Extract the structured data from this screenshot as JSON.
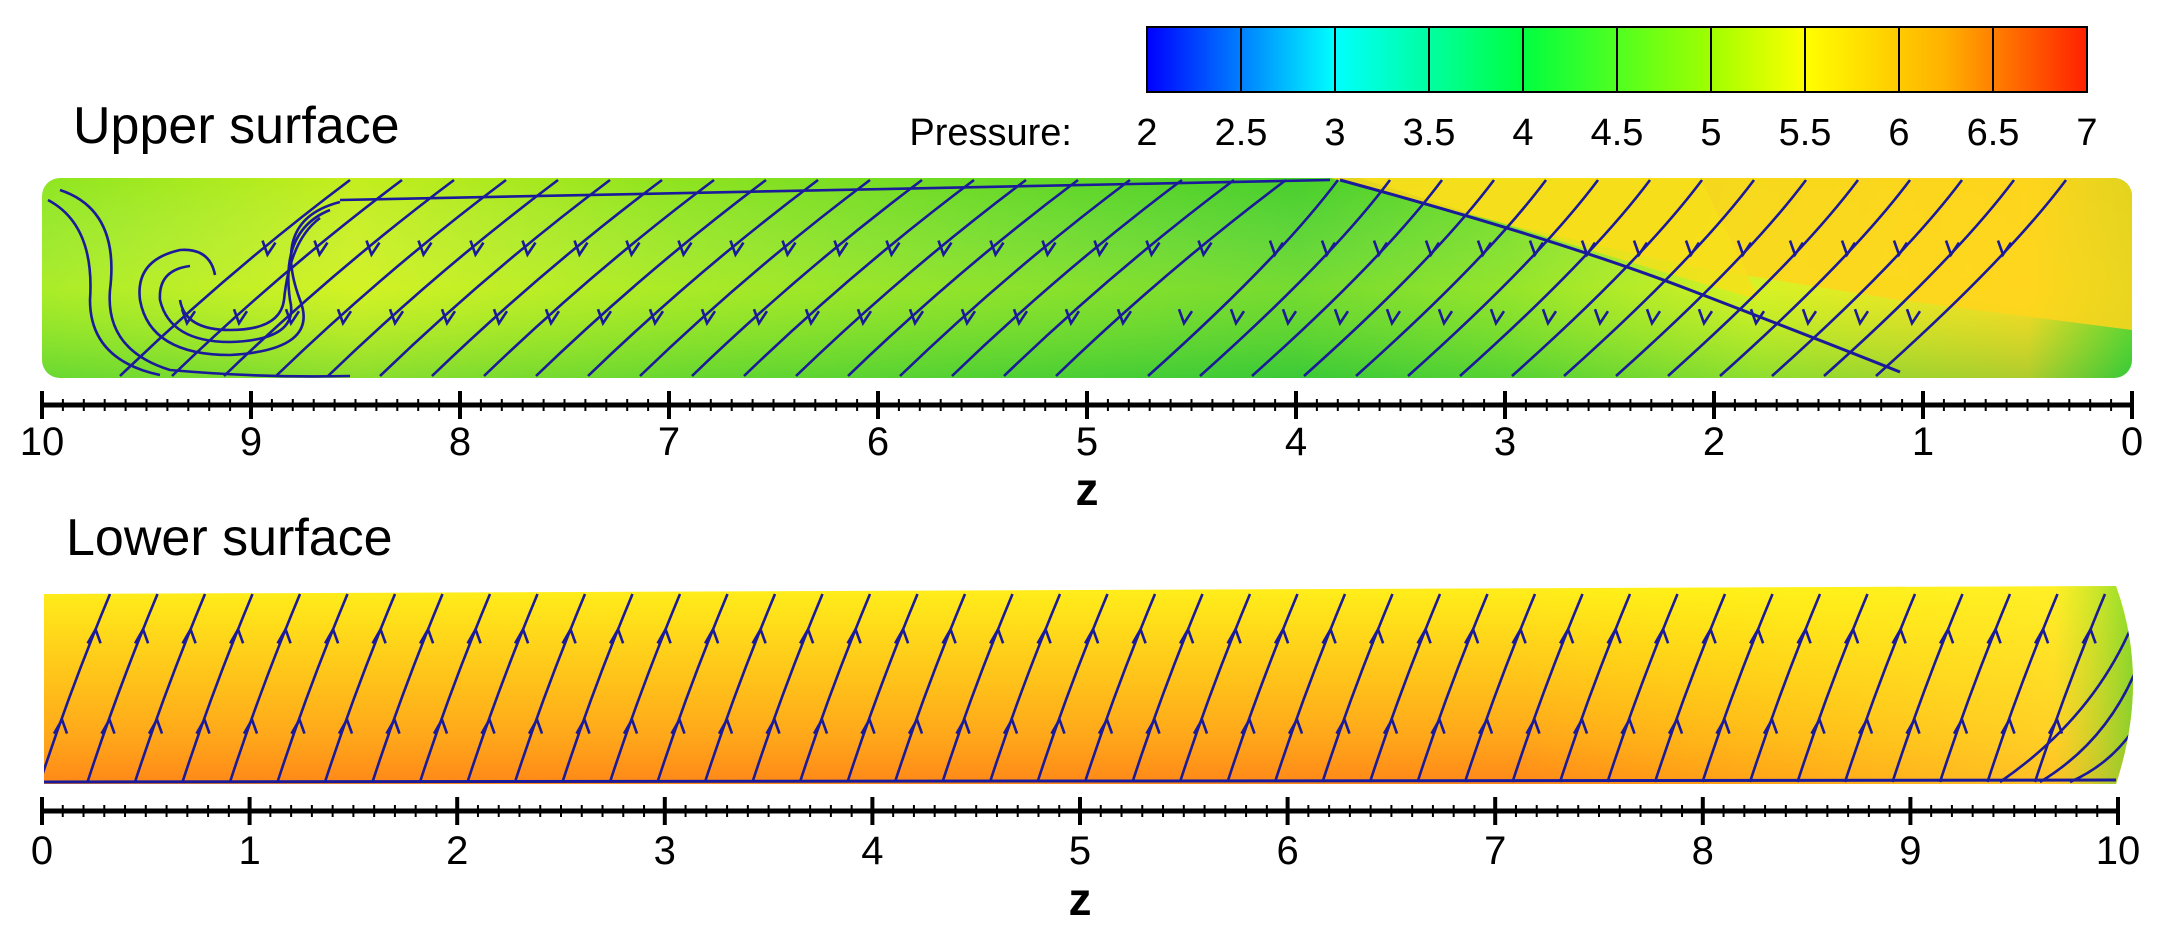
{
  "panels": {
    "upper": {
      "title": "Upper surface"
    },
    "lower": {
      "title": "Lower surface"
    }
  },
  "colorbar": {
    "label": "Pressure:",
    "ticks": [
      "2",
      "2.5",
      "3",
      "3.5",
      "4",
      "4.5",
      "5",
      "5.5",
      "6",
      "6.5",
      "7"
    ],
    "range": [
      2,
      7
    ],
    "colors": [
      "#0000ff",
      "#0080ff",
      "#00ffff",
      "#00ff80",
      "#00ff00",
      "#80ff00",
      "#ffff00",
      "#ffc000",
      "#ff8000",
      "#ff0000"
    ]
  },
  "upper_axis": {
    "label": "z",
    "ticks": [
      "10",
      "9",
      "8",
      "7",
      "6",
      "5",
      "4",
      "3",
      "2",
      "1",
      "0"
    ],
    "direction": "decreasing"
  },
  "lower_axis": {
    "label": "z",
    "ticks": [
      "0",
      "1",
      "2",
      "3",
      "4",
      "5",
      "6",
      "7",
      "8",
      "9",
      "10"
    ],
    "direction": "increasing"
  },
  "colors": {
    "streamline": "#1a1a9a",
    "upper_fill_low": "#33d12a",
    "upper_fill_mid": "#a8e61c",
    "upper_fill_high": "#ffd21c",
    "lower_fill_top": "#fff01a",
    "lower_fill_mid": "#ffb81a",
    "lower_fill_bottom": "#ff8a1a"
  }
}
